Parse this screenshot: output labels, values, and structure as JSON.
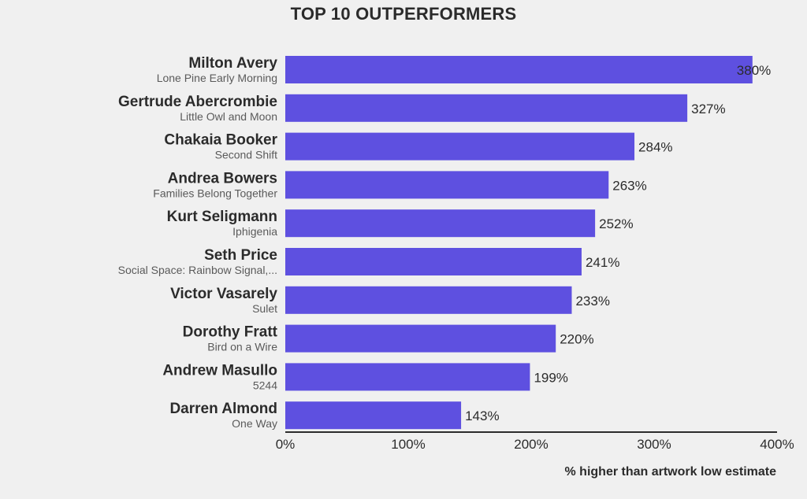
{
  "chart_data": {
    "type": "bar",
    "orientation": "horizontal",
    "title": "TOP 10 OUTPERFORMERS",
    "xlabel": "% higher than artwork low estimate",
    "ylabel": "",
    "xlim": [
      0,
      400
    ],
    "x_ticks": [
      "0%",
      "100%",
      "200%",
      "300%",
      "400%"
    ],
    "bar_color": "#5e50e0",
    "grid": false,
    "legend": "none",
    "categories": [
      {
        "artist": "Milton Avery",
        "artwork": "Lone Pine Early Morning"
      },
      {
        "artist": "Gertrude Abercrombie",
        "artwork": "Little Owl and Moon"
      },
      {
        "artist": "Chakaia Booker",
        "artwork": "Second Shift"
      },
      {
        "artist": "Andrea Bowers",
        "artwork": "Families Belong Together"
      },
      {
        "artist": "Kurt Seligmann",
        "artwork": "Iphigenia"
      },
      {
        "artist": "Seth Price",
        "artwork": "Social Space: Rainbow Signal,..."
      },
      {
        "artist": "Victor Vasarely",
        "artwork": "Sulet"
      },
      {
        "artist": "Dorothy Fratt",
        "artwork": "Bird on a Wire"
      },
      {
        "artist": "Andrew Masullo",
        "artwork": "5244"
      },
      {
        "artist": "Darren Almond",
        "artwork": "One Way"
      }
    ],
    "values": [
      380,
      327,
      284,
      263,
      252,
      241,
      233,
      220,
      199,
      143
    ],
    "value_labels": [
      "380%",
      "327%",
      "284%",
      "263%",
      "252%",
      "241%",
      "233%",
      "220%",
      "199%",
      "143%"
    ]
  }
}
